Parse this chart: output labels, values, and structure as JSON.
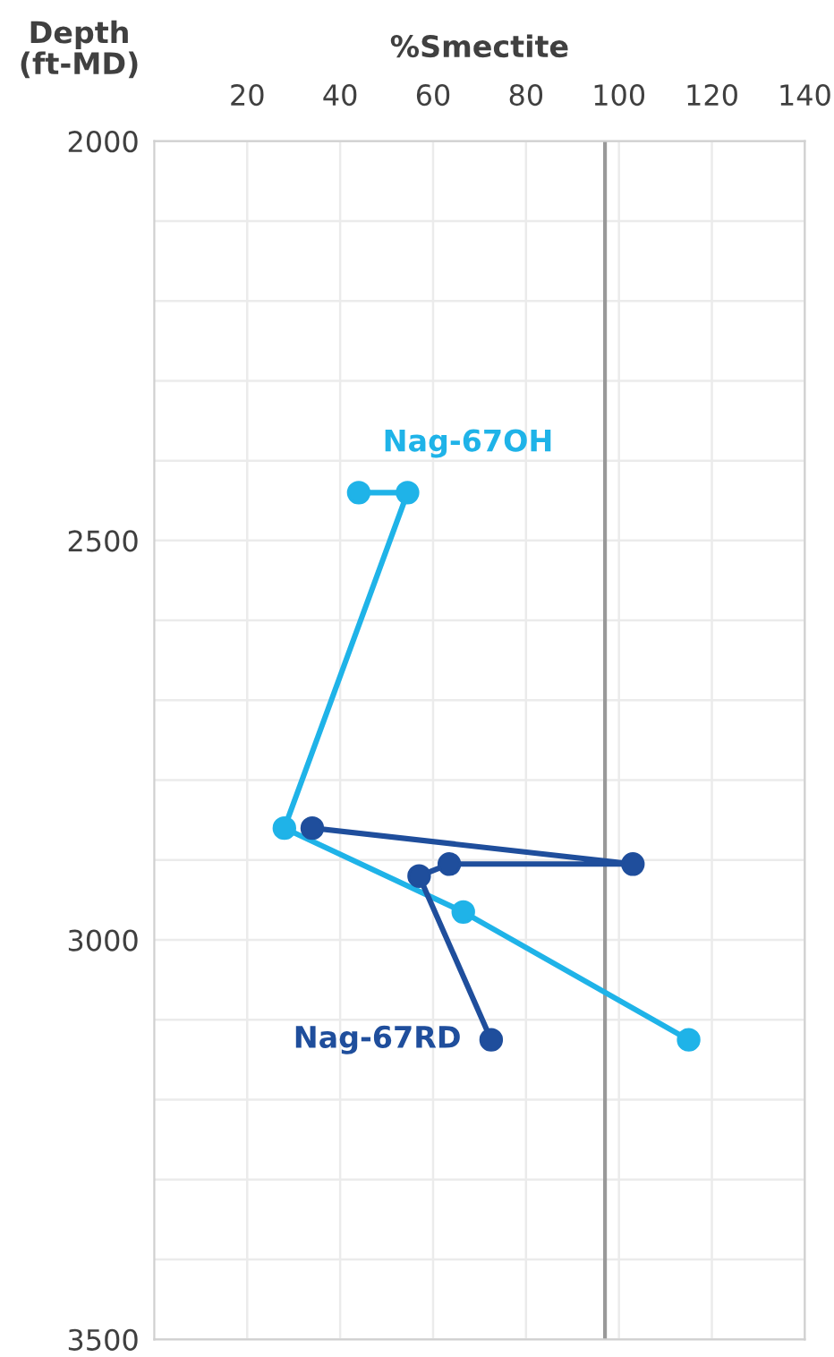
{
  "chart_data": {
    "type": "line",
    "xlabel": "%Smectite",
    "ylabel": "Depth\n(ft-MD)",
    "xlim": [
      0,
      140
    ],
    "xticks": [
      20,
      40,
      60,
      80,
      100,
      120,
      140
    ],
    "ylim": [
      3500,
      2000
    ],
    "yticks": [
      2000,
      {
        "value": 2100,
        "label": null
      },
      {
        "value": 2200,
        "label": null
      },
      {
        "value": 2300,
        "label": null
      },
      {
        "value": 2400,
        "label": null
      },
      2500,
      {
        "value": 2600,
        "label": null
      },
      {
        "value": 2700,
        "label": null
      },
      {
        "value": 2800,
        "label": null
      },
      {
        "value": 2900,
        "label": null
      },
      3000,
      {
        "value": 3100,
        "label": null
      },
      {
        "value": 3200,
        "label": null
      },
      {
        "value": 3300,
        "label": null
      },
      {
        "value": 3400,
        "label": null
      },
      3500
    ],
    "grid": true,
    "legend": false,
    "marker": "circle",
    "line_style": "solid",
    "series": [
      {
        "name": "Nag-67OH",
        "color": "#1fb3e8",
        "x": [
          44,
          54.5,
          28,
          66.5,
          115
        ],
        "values": [
          2440,
          2440,
          2860,
          2965,
          3125
        ]
      },
      {
        "name": "Nag-67RD",
        "color": "#1f4e9c",
        "x": [
          34,
          103,
          63.5,
          57,
          72.5
        ],
        "values": [
          2860,
          2905,
          2905,
          2920,
          3125
        ]
      }
    ],
    "ref_lines": [
      {
        "axis": "x",
        "value": 97,
        "color": "#999999"
      }
    ]
  }
}
